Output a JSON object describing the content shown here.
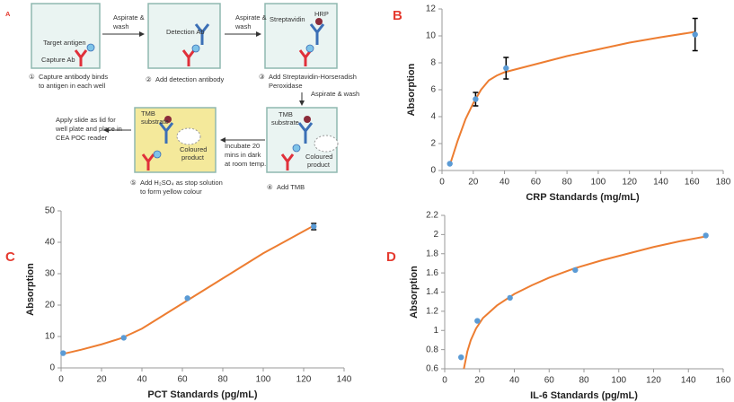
{
  "diagram": {
    "panel_label": "A",
    "steps": [
      {
        "number": "①",
        "lines": [
          "Capture antibody binds",
          "to antigen in each well"
        ]
      },
      {
        "number": "②",
        "lines": [
          "Add detection antibody"
        ]
      },
      {
        "number": "③",
        "lines": [
          "Add Streptavidin-Horseradish",
          "Peroxidase"
        ]
      },
      {
        "number": "④",
        "lines": [
          "Add TMB"
        ]
      },
      {
        "number": "⑤",
        "lines": [
          "Add H₂SO₄ as stop solution",
          "to form yellow colour"
        ]
      }
    ],
    "labels": {
      "target_antigen": "Target antigen",
      "capture_ab": "Capture Ab",
      "detection_ab": "Detection Ab",
      "streptavidin": "Streptavidin",
      "hrp": "HRP",
      "tmb_substrate_4": [
        "TMB",
        "substrate"
      ],
      "coloured_product_4": [
        "Coloured",
        "product"
      ],
      "tmb_substrate_5": [
        "TMB",
        "substrate"
      ],
      "coloured_product_5": [
        "Coloured",
        "product"
      ]
    },
    "arrows": [
      {
        "lines": [
          "Aspirate &",
          "wash"
        ]
      },
      {
        "lines": [
          "Aspirate &",
          "wash"
        ]
      },
      {
        "lines": [
          "Aspirate & wash"
        ]
      },
      {
        "lines": [
          "Incubate 20",
          "mins in dark",
          "at room temp."
        ]
      },
      {
        "lines": [
          "Apply slide as lid for",
          "well plate and place in",
          "CEA POC reader"
        ]
      }
    ]
  },
  "chart_data": [
    {
      "type": "scatter",
      "panel_label": "B",
      "x_label": "CRP Standards (mg/mL)",
      "y_label": "Absorption",
      "x": [
        5,
        21.5,
        41,
        162
      ],
      "values": [
        0.5,
        5.3,
        7.6,
        10.1
      ],
      "errors": [
        null,
        0.5,
        0.8,
        1.2
      ],
      "fit": {
        "x": [
          5,
          10,
          15,
          20,
          25,
          30,
          35,
          40,
          60,
          80,
          100,
          120,
          140,
          162
        ],
        "values": [
          0.4,
          2.2,
          3.8,
          5.0,
          6.0,
          6.7,
          7.05,
          7.3,
          7.9,
          8.5,
          9.0,
          9.5,
          9.9,
          10.3
        ]
      },
      "color": "#5b9bd5",
      "fit_color": "#ed7d31",
      "xlim": [
        0,
        180
      ],
      "xticks": [
        0,
        20,
        40,
        60,
        80,
        100,
        120,
        140,
        160,
        180
      ],
      "ylim": [
        0,
        12
      ],
      "yticks": [
        0,
        2,
        4,
        6,
        8,
        10,
        12
      ]
    },
    {
      "type": "scatter",
      "panel_label": "C",
      "x_label": "PCT Standards (pg/mL)",
      "y_label": "Absorption",
      "x": [
        1,
        31,
        62.5,
        125
      ],
      "values": [
        4.7,
        9.6,
        22.2,
        45
      ],
      "errors": [
        null,
        null,
        null,
        1
      ],
      "fit": {
        "x": [
          0,
          10,
          20,
          30,
          40,
          50,
          60,
          70,
          80,
          90,
          100,
          110,
          125
        ],
        "values": [
          4.3,
          5.8,
          7.5,
          9.5,
          12.5,
          16.5,
          20.5,
          24.5,
          28.5,
          32.5,
          36.5,
          40,
          45.3
        ]
      },
      "color": "#5b9bd5",
      "fit_color": "#ed7d31",
      "xlim": [
        0,
        140
      ],
      "xticks": [
        0,
        20,
        40,
        60,
        80,
        100,
        120,
        140
      ],
      "ylim": [
        0,
        50
      ],
      "yticks": [
        0,
        10,
        20,
        30,
        40,
        50
      ]
    },
    {
      "type": "scatter",
      "panel_label": "D",
      "x_label": "IL-6 Standards (pg/mL)",
      "y_label": "Absorption",
      "x": [
        9.4,
        18.75,
        37.5,
        75,
        150
      ],
      "values": [
        0.72,
        1.1,
        1.34,
        1.63,
        1.99
      ],
      "fit": {
        "x": [
          11,
          13,
          15,
          18,
          22,
          30,
          40,
          50,
          60,
          75,
          90,
          105,
          120,
          135,
          150
        ],
        "values": [
          0.6,
          0.78,
          0.9,
          1.02,
          1.13,
          1.26,
          1.38,
          1.47,
          1.55,
          1.65,
          1.73,
          1.8,
          1.87,
          1.93,
          1.98
        ]
      },
      "color": "#5b9bd5",
      "fit_color": "#ed7d31",
      "xlim": [
        0,
        160
      ],
      "xticks": [
        0,
        20,
        40,
        60,
        80,
        100,
        120,
        140,
        160
      ],
      "ylim": [
        0.6,
        2.2
      ],
      "yticks": [
        0.6,
        0.8,
        1,
        1.2,
        1.4,
        1.6,
        1.8,
        2,
        2.2
      ]
    }
  ]
}
